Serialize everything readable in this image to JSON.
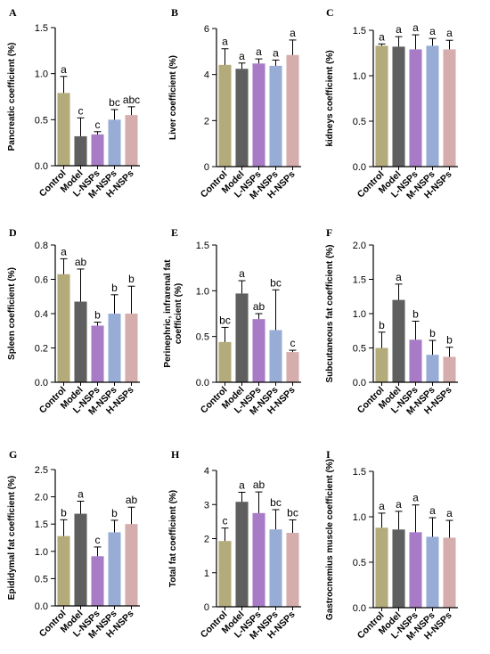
{
  "colors": {
    "Control": "#b3ab7a",
    "Model": "#5f5f5f",
    "L-NSPs": "#a87bc6",
    "M-NSPs": "#97add6",
    "H-NSPs": "#d4adac",
    "axis": "#000000"
  },
  "chart_data": [
    {
      "type": "bar",
      "panel": "A",
      "ylabel": "Pancreatic coefficient (%)",
      "categories": [
        "Control",
        "Model",
        "L-NSPs",
        "M-NSPs",
        "H-NSPs"
      ],
      "values": [
        0.79,
        0.32,
        0.34,
        0.5,
        0.55
      ],
      "errors": [
        0.18,
        0.2,
        0.03,
        0.11,
        0.09
      ],
      "labels": [
        "a",
        "c",
        "c",
        "bc",
        "abc"
      ],
      "ylim": [
        0,
        1.5
      ],
      "yticks": [
        "0.0",
        "0.5",
        "1.0",
        "1.5"
      ]
    },
    {
      "type": "bar",
      "panel": "B",
      "ylabel": "Liver coefficient (%)",
      "categories": [
        "Control",
        "Model",
        "L-NSPs",
        "M-NSPs",
        "H-NSPs"
      ],
      "values": [
        4.42,
        4.25,
        4.48,
        4.38,
        4.85
      ],
      "errors": [
        0.7,
        0.25,
        0.2,
        0.25,
        0.65
      ],
      "labels": [
        "a",
        "a",
        "a",
        "a",
        "a"
      ],
      "ylim": [
        0,
        6
      ],
      "yticks": [
        "0",
        "2",
        "4",
        "6"
      ]
    },
    {
      "type": "bar",
      "panel": "C",
      "ylabel": "kidneys coefficient (%)",
      "categories": [
        "Control",
        "Model",
        "L-NSPs",
        "M-NSPs",
        "H-NSPs"
      ],
      "values": [
        1.33,
        1.32,
        1.29,
        1.33,
        1.29
      ],
      "errors": [
        0.02,
        0.11,
        0.16,
        0.08,
        0.1
      ],
      "labels": [
        "a",
        "a",
        "a",
        "a",
        "a"
      ],
      "ylim": [
        0,
        1.5
      ],
      "yticks": [
        "0.0",
        "0.5",
        "1.0",
        "1.5"
      ]
    },
    {
      "type": "bar",
      "panel": "D",
      "ylabel": "Spleen coefficient (%)",
      "categories": [
        "Control",
        "Model",
        "L-NSPs",
        "M-NSPs",
        "H-NSPs"
      ],
      "values": [
        0.63,
        0.47,
        0.33,
        0.4,
        0.4
      ],
      "errors": [
        0.09,
        0.19,
        0.02,
        0.11,
        0.16
      ],
      "labels": [
        "a",
        "ab",
        "b",
        "b",
        "b"
      ],
      "ylim": [
        0,
        0.8
      ],
      "yticks": [
        "0.0",
        "0.2",
        "0.4",
        "0.6",
        "0.8"
      ]
    },
    {
      "type": "bar",
      "panel": "E",
      "ylabel_lines": [
        "Perinephric, infrarenal fat",
        "coefficient (%)"
      ],
      "categories": [
        "Control",
        "Model",
        "L-NSPs",
        "M-NSPs",
        "H-NSPs"
      ],
      "values": [
        0.44,
        0.97,
        0.69,
        0.57,
        0.33
      ],
      "errors": [
        0.16,
        0.14,
        0.06,
        0.44,
        0.02
      ],
      "labels": [
        "bc",
        "a",
        "ab",
        "bc",
        "c"
      ],
      "ylim": [
        0,
        1.5
      ],
      "yticks": [
        "0.0",
        "0.5",
        "1.0",
        "1.5"
      ]
    },
    {
      "type": "bar",
      "panel": "F",
      "ylabel": "Subcutaneous fat coefficient (%)",
      "categories": [
        "Control",
        "Model",
        "L-NSPs",
        "M-NSPs",
        "H-NSPs"
      ],
      "values": [
        0.5,
        1.2,
        0.62,
        0.4,
        0.37
      ],
      "errors": [
        0.23,
        0.23,
        0.27,
        0.21,
        0.14
      ],
      "labels": [
        "b",
        "a",
        "b",
        "b",
        "b"
      ],
      "ylim": [
        0,
        2.0
      ],
      "yticks": [
        "0.0",
        "0.5",
        "1.0",
        "1.5",
        "2.0"
      ]
    },
    {
      "type": "bar",
      "panel": "G",
      "ylabel": "Epididymal fat coefficient (%)",
      "categories": [
        "Control",
        "Model",
        "L-NSPs",
        "M-NSPs",
        "H-NSPs"
      ],
      "values": [
        1.28,
        1.69,
        0.91,
        1.35,
        1.5
      ],
      "errors": [
        0.3,
        0.23,
        0.17,
        0.22,
        0.31
      ],
      "labels": [
        "b",
        "a",
        "c",
        "b",
        "ab"
      ],
      "ylim": [
        0,
        2.5
      ],
      "yticks": [
        "0.0",
        "0.5",
        "1.0",
        "1.5",
        "2.0",
        "2.5"
      ]
    },
    {
      "type": "bar",
      "panel": "H",
      "ylabel": "Total fat coefficient (%)",
      "categories": [
        "Control",
        "Model",
        "L-NSPs",
        "M-NSPs",
        "H-NSPs"
      ],
      "values": [
        1.93,
        3.08,
        2.75,
        2.27,
        2.17
      ],
      "errors": [
        0.38,
        0.28,
        0.62,
        0.58,
        0.38
      ],
      "labels": [
        "c",
        "a",
        "ab",
        "bc",
        "bc"
      ],
      "ylim": [
        0,
        4
      ],
      "yticks": [
        "0",
        "1",
        "2",
        "3",
        "4"
      ]
    },
    {
      "type": "bar",
      "panel": "I",
      "ylabel": "Gastrocnemius muscle coefficient (%)",
      "categories": [
        "Control",
        "Model",
        "L-NSPs",
        "M-NSPs",
        "H-NSPs"
      ],
      "values": [
        0.88,
        0.86,
        0.83,
        0.78,
        0.77
      ],
      "errors": [
        0.16,
        0.2,
        0.3,
        0.21,
        0.19
      ],
      "labels": [
        "a",
        "a",
        "a",
        "a",
        "a"
      ],
      "ylim": [
        0,
        1.5
      ],
      "yticks": [
        "0.0",
        "0.5",
        "1.0",
        "1.5"
      ]
    }
  ]
}
